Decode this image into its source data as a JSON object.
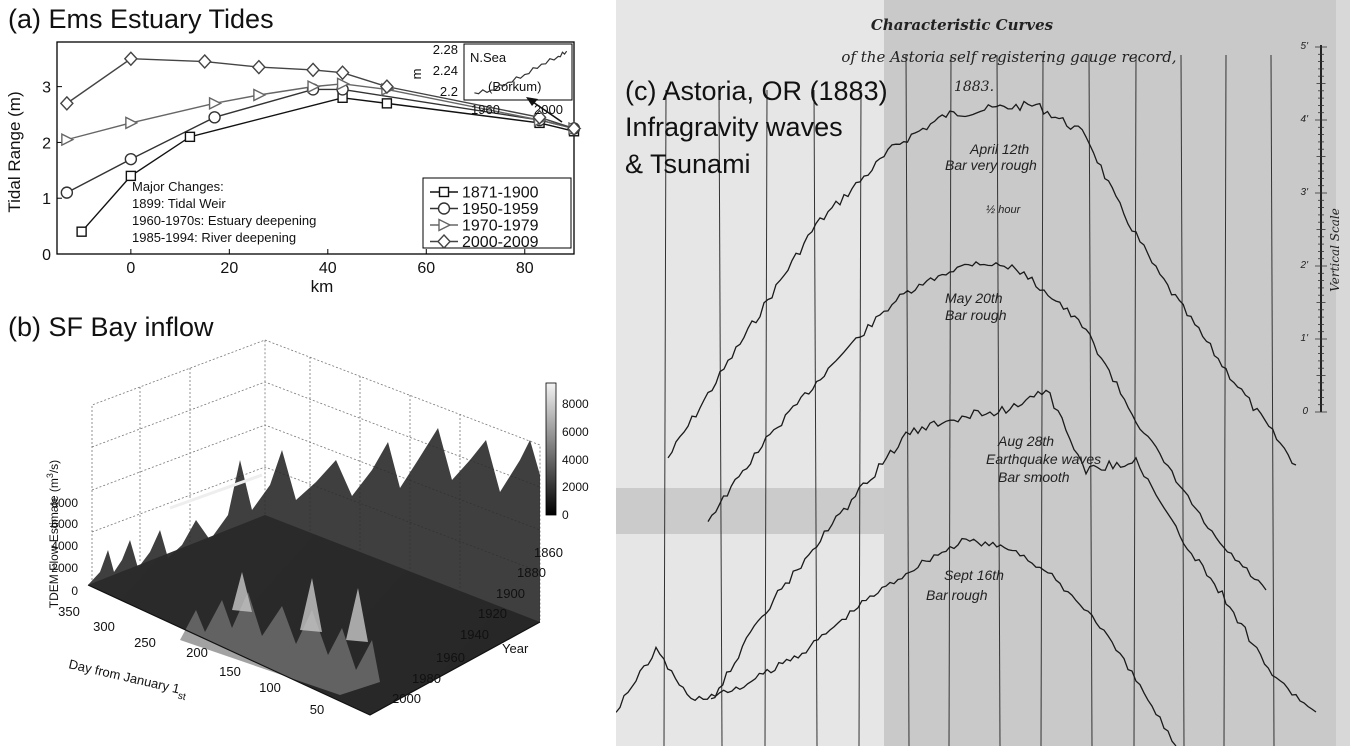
{
  "panel_a": {
    "title": "(a) Ems Estuary Tides",
    "ylabel": "Tidal Range (m)",
    "xlabel": "km",
    "notes_title": "Major Changes:",
    "notes": [
      "1899: Tidal Weir",
      "1960-1970s: Estuary deepening",
      "1985-1994: River deepening"
    ],
    "inset": {
      "label": "N.Sea",
      "sublabel": "(Borkum)",
      "ylabel": "m",
      "yticks": [
        "2.28",
        "2.24",
        "2.2"
      ],
      "xticks": [
        "1960",
        "2000"
      ]
    }
  },
  "panel_b": {
    "title": "(b) SF Bay inflow",
    "zlabel": "TDEM Flow Estimate (m³/s)",
    "xlabel": "Day from January 1st",
    "ylabel": "Year",
    "zticks": [
      "8000",
      "6000",
      "4000",
      "2000",
      "0"
    ],
    "dayticks": [
      "350",
      "300",
      "250",
      "200",
      "150",
      "100",
      "50"
    ],
    "yearticks": [
      "1860",
      "1880",
      "1900",
      "1920",
      "1940",
      "1960",
      "1980",
      "2000"
    ],
    "colorbar_ticks": [
      "8000",
      "6000",
      "4000",
      "2000",
      "0"
    ]
  },
  "panel_c": {
    "title_lines": [
      "(c) Astoria, OR (1883)",
      "Infragravity waves",
      "& Tsunami"
    ],
    "doc_title": "Characteristic Curves",
    "doc_subtitle": "of the Astoria self registering gauge record,",
    "doc_year": "1883.",
    "curve_labels": [
      [
        "April 12th",
        "Bar very rough"
      ],
      [
        "May 20th",
        "Bar rough"
      ],
      [
        "Aug 28th",
        "Earthquake waves",
        "Bar smooth"
      ],
      [
        "Sept 16th",
        "Bar rough"
      ]
    ],
    "half_hour": "½ hour",
    "vertical_scale": "Vertical Scale",
    "scale_ticks": [
      "5'",
      "4'",
      "3'",
      "2'",
      "1'",
      "0"
    ]
  },
  "chart_data": [
    {
      "type": "line",
      "title": "(a) Ems Estuary Tides",
      "xlabel": "km",
      "ylabel": "Tidal Range (m)",
      "xlim": [
        -15,
        90
      ],
      "ylim": [
        0,
        3.8
      ],
      "xticks": [
        0,
        20,
        40,
        60,
        80
      ],
      "yticks": [
        0,
        1,
        2,
        3
      ],
      "legend_position": "bottom-right",
      "series": [
        {
          "name": "1871-1900",
          "marker": "square",
          "x": [
            -10,
            0,
            12,
            43,
            52,
            83,
            90
          ],
          "y": [
            0.4,
            1.4,
            2.1,
            2.8,
            2.7,
            2.35,
            2.2
          ]
        },
        {
          "name": "1950-1959",
          "marker": "circle",
          "x": [
            -13,
            0,
            17,
            37,
            43,
            83,
            90
          ],
          "y": [
            1.1,
            1.7,
            2.45,
            2.95,
            2.95,
            2.4,
            2.25
          ]
        },
        {
          "name": "1970-1979",
          "marker": "triangle-right",
          "x": [
            -13,
            0,
            17,
            26,
            37,
            43,
            52,
            83,
            90
          ],
          "y": [
            2.05,
            2.35,
            2.7,
            2.85,
            3.0,
            3.05,
            2.95,
            2.4,
            2.25
          ]
        },
        {
          "name": "2000-2009",
          "marker": "diamond",
          "x": [
            -13,
            0,
            15,
            26,
            37,
            43,
            52,
            83,
            90
          ],
          "y": [
            2.7,
            3.5,
            3.45,
            3.35,
            3.3,
            3.25,
            3.0,
            2.45,
            2.25
          ]
        }
      ]
    },
    {
      "type": "line",
      "title": "N.Sea (Borkum) inset",
      "ylabel": "m",
      "xlim": [
        1950,
        2012
      ],
      "ylim": [
        2.19,
        2.29
      ],
      "series": [
        {
          "name": "N.Sea",
          "x": [
            1955,
            1965,
            1975,
            1985,
            1995,
            2005,
            2010
          ],
          "y": [
            2.2,
            2.205,
            2.22,
            2.235,
            2.255,
            2.27,
            2.28
          ]
        }
      ]
    },
    {
      "type": "heatmap",
      "title": "(b) SF Bay inflow",
      "xlabel": "Day from January 1st",
      "ylabel": "Year",
      "zlabel": "TDEM Flow Estimate (m³/s)",
      "x_range": [
        1,
        365
      ],
      "y_range": [
        1860,
        2000
      ],
      "z_range": [
        0,
        8000
      ]
    }
  ]
}
